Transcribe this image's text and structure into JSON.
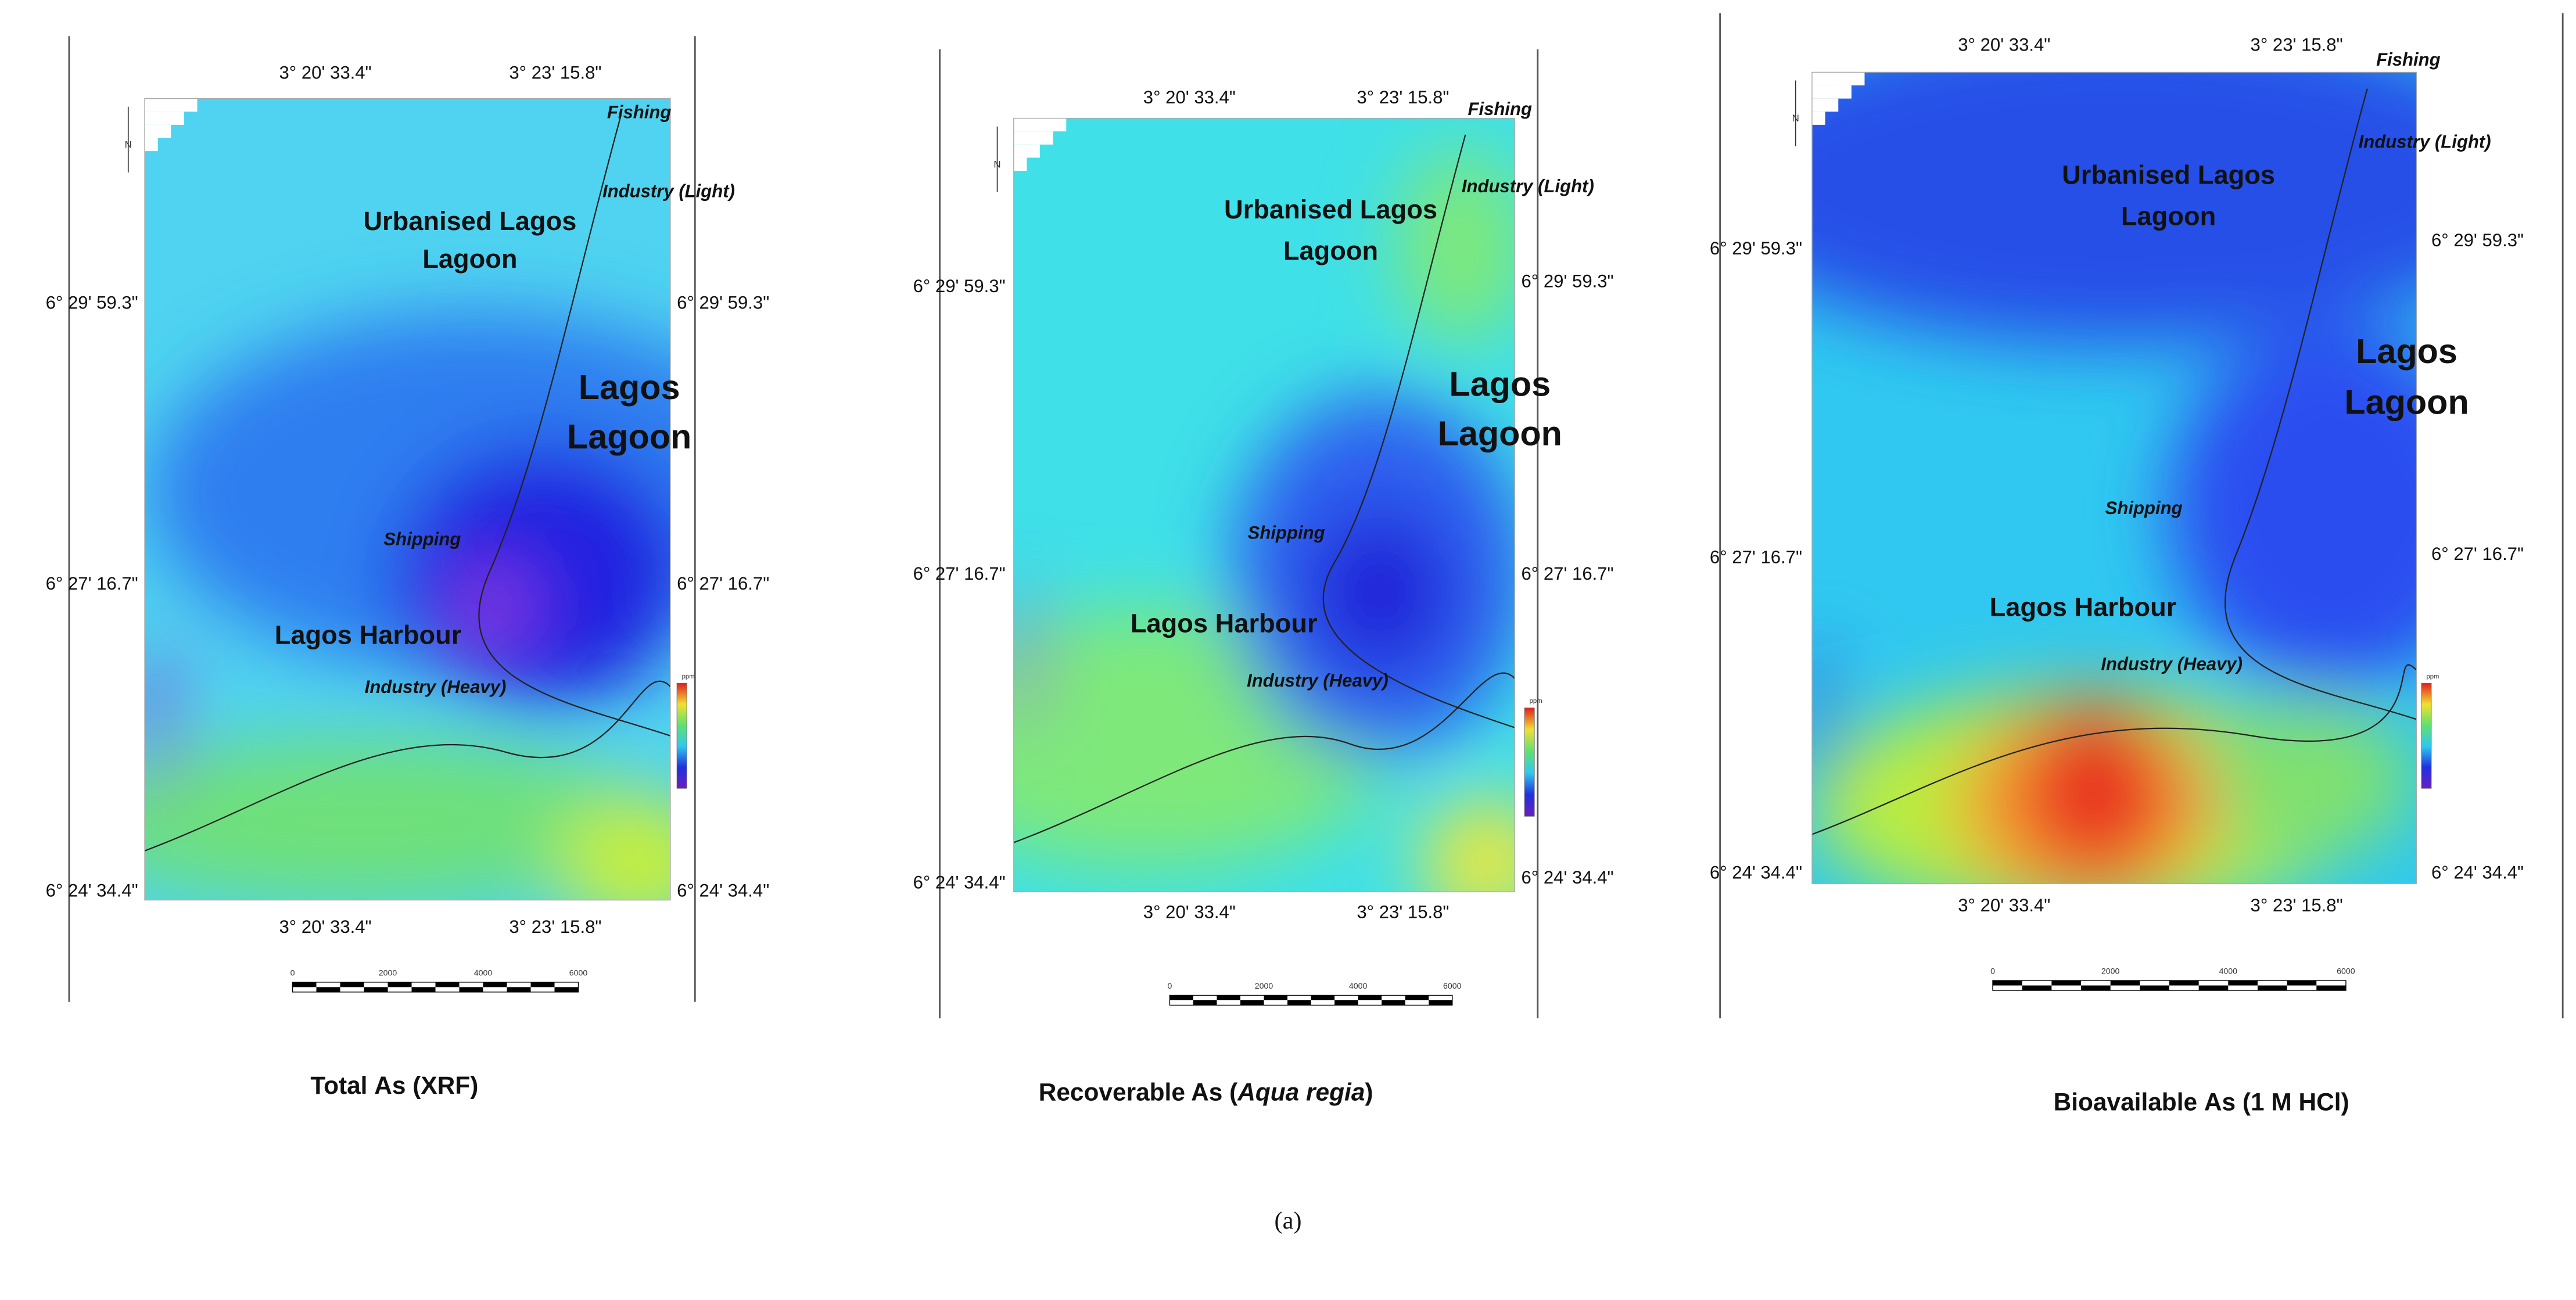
{
  "figure_label": "(a)",
  "panels": [
    {
      "caption": [
        "Total ",
        "As",
        " (XRF)"
      ],
      "lon_top": [
        "3° 20' 33.4\"",
        "3° 23' 15.8\""
      ],
      "lon_bottom": [
        "3° 20' 33.4\"",
        "3° 23' 15.8\""
      ],
      "lat_left": [
        "6° 29' 59.3\"",
        "6° 27' 16.7\"",
        "6° 24' 34.4\""
      ],
      "lat_right": [
        "6° 29' 59.3\"",
        "6° 27' 16.7\"",
        "6° 24' 34.4\""
      ],
      "places": [
        "Fishing",
        "Industry (Light)",
        "Urbanised Lagos",
        "Lagoon",
        "Lagos",
        "Lagoon",
        "Shipping",
        "Lagos Harbour",
        "Industry (Heavy)"
      ],
      "scale_labels": [
        "0",
        "2000",
        "4000",
        "6000"
      ],
      "legend_unit": "ppm"
    },
    {
      "caption": [
        "Recoverable As (",
        "Aqua regia",
        ")"
      ],
      "lon_top": [
        "3° 20' 33.4\"",
        "3° 23' 15.8\""
      ],
      "lon_bottom": [
        "3° 20' 33.4\"",
        "3° 23' 15.8\""
      ],
      "lat_left": [
        "6° 29' 59.3\"",
        "6° 27' 16.7\"",
        "6° 24' 34.4\""
      ],
      "lat_right": [
        "6° 29' 59.3\"",
        "6° 27' 16.7\"",
        "6° 24' 34.4\""
      ],
      "places": [
        "Fishing",
        "Industry (Light)",
        "Urbanised Lagos",
        "Lagoon",
        "Lagos",
        "Lagoon",
        "Shipping",
        "Lagos Harbour",
        "Industry (Heavy)"
      ],
      "scale_labels": [
        "0",
        "2000",
        "4000",
        "6000"
      ],
      "legend_unit": "ppm"
    },
    {
      "caption": [
        "Bioavailable ",
        "As",
        " (1 M HCl)"
      ],
      "lon_top": [
        "3° 20' 33.4\"",
        "3° 23' 15.8\""
      ],
      "lon_bottom": [
        "3° 20' 33.4\"",
        "3° 23' 15.8\""
      ],
      "lat_left": [
        "6° 29' 59.3\"",
        "6° 27' 16.7\"",
        "6° 24' 34.4\""
      ],
      "lat_right": [
        "6° 29' 59.3\"",
        "6° 27' 16.7\"",
        "6° 24' 34.4\""
      ],
      "places": [
        "Fishing",
        "Industry (Light)",
        "Urbanised Lagos",
        "Lagoon",
        "Lagos",
        "Lagoon",
        "Shipping",
        "Lagos Harbour",
        "Industry (Heavy)"
      ],
      "scale_labels": [
        "0",
        "2000",
        "4000",
        "6000"
      ],
      "legend_unit": "ppm"
    }
  ]
}
